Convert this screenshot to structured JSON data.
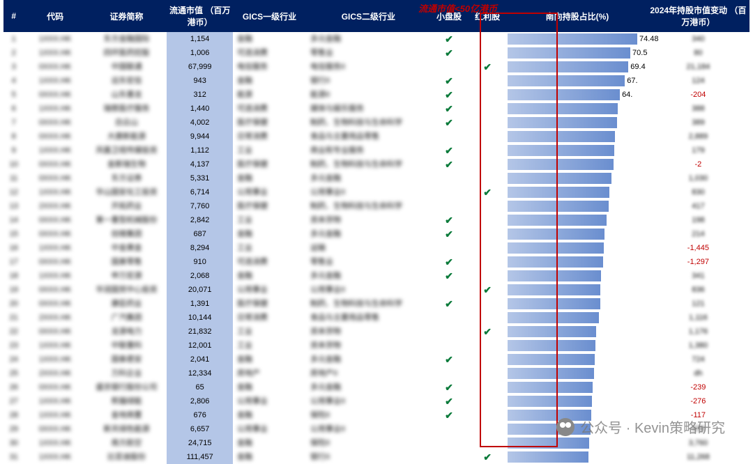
{
  "annotation": "流通市值<50亿港币",
  "headers": {
    "idx": "#",
    "code": "代码",
    "name": "证券简称",
    "cap": "流通市值\n（百万港币）",
    "g1": "GICS一级行业",
    "g2": "GICS二级行业",
    "small": "小盘股",
    "div": "红利股",
    "bar": "南向持股占比(%)",
    "chg": "2024年持股市值变动\n（百万港币）"
  },
  "bar_max": 80,
  "colors": {
    "header_bg": "#002060",
    "cap_bg": "#b4c6e7",
    "neg": "#c00000",
    "check": "#0a7a3a"
  },
  "rows": [
    {
      "idx": 1,
      "code": "1XXX.HK",
      "name": "东方金融国际",
      "cap": "1,154",
      "g1": "金融",
      "g2": "多元金融",
      "small": true,
      "div": false,
      "pct": 74.48,
      "pct_label": "74.48",
      "chg": "340",
      "neg": false
    },
    {
      "idx": 2,
      "code": "1XXX.HK",
      "name": "四环医药控股",
      "cap": "1,006",
      "g1": "可选消费",
      "g2": "零售业",
      "small": true,
      "div": false,
      "pct": 70.5,
      "pct_label": "70.5",
      "chg": "80",
      "neg": false
    },
    {
      "idx": 3,
      "code": "0XXX.HK",
      "name": "中国联通",
      "cap": "67,999",
      "g1": "电信服务",
      "g2": "电信服务II",
      "small": false,
      "div": true,
      "pct": 69.4,
      "pct_label": "69.4",
      "chg": "21,184",
      "neg": false
    },
    {
      "idx": 4,
      "code": "1XXX.HK",
      "name": "远东宏信",
      "cap": "943",
      "g1": "金融",
      "g2": "银行II",
      "small": true,
      "div": false,
      "pct": 67.4,
      "pct_label": "67.",
      "chg": "124",
      "neg": false
    },
    {
      "idx": 5,
      "code": "0XXX.HK",
      "name": "山东墨龙",
      "cap": "312",
      "g1": "能源",
      "g2": "能源II",
      "small": true,
      "div": false,
      "pct": 64.5,
      "pct_label": "64.",
      "chg": "-204",
      "neg": true
    },
    {
      "idx": 6,
      "code": "1XXX.HK",
      "name": "瑞慈医疗服务",
      "cap": "1,440",
      "g1": "可选消费",
      "g2": "媒体与娱乐服务",
      "small": true,
      "div": false,
      "pct": 63.4,
      "pct_label": "",
      "chg": "388",
      "neg": false
    },
    {
      "idx": 7,
      "code": "0XXX.HK",
      "name": "白云山",
      "cap": "4,002",
      "g1": "医疗保健",
      "g2": "制药、生物科技与生命科学",
      "small": true,
      "div": false,
      "pct": 62.9,
      "pct_label": "",
      "chg": "389",
      "neg": false
    },
    {
      "idx": 8,
      "code": "0XXX.HK",
      "name": "大唐新能源",
      "cap": "9,944",
      "g1": "日常消费",
      "g2": "食品与主要用品零售",
      "small": false,
      "div": false,
      "pct": 61.8,
      "pct_label": "",
      "chg": "2,889",
      "neg": false
    },
    {
      "idx": 9,
      "code": "1XXX.HK",
      "name": "凤凰卫视传媒投资",
      "cap": "1,112",
      "g1": "工业",
      "g2": "商业和专业服务",
      "small": true,
      "div": false,
      "pct": 61.3,
      "pct_label": "",
      "chg": "179",
      "neg": false
    },
    {
      "idx": 10,
      "code": "0XXX.HK",
      "name": "金斯瑞生物",
      "cap": "4,137",
      "g1": "医疗保健",
      "g2": "制药、生物科技与生命科学",
      "small": true,
      "div": false,
      "pct": 60.8,
      "pct_label": "",
      "chg": "-2",
      "neg": true
    },
    {
      "idx": 11,
      "code": "0XXX.HK",
      "name": "东方证券",
      "cap": "5,331",
      "g1": "金融",
      "g2": "多元金融",
      "small": false,
      "div": false,
      "pct": 59.7,
      "pct_label": "",
      "chg": "1,030",
      "neg": false
    },
    {
      "idx": 12,
      "code": "1XXX.HK",
      "name": "华山国安化工投资",
      "cap": "6,714",
      "g1": "公用事业",
      "g2": "公用事业II",
      "small": false,
      "div": true,
      "pct": 58.5,
      "pct_label": "",
      "chg": "830",
      "neg": false
    },
    {
      "idx": 13,
      "code": "2XXX.HK",
      "name": "开拓药业",
      "cap": "7,760",
      "g1": "医疗保健",
      "g2": "制药、生物科技与生命科学",
      "small": false,
      "div": false,
      "pct": 58.1,
      "pct_label": "",
      "chg": "417",
      "neg": false
    },
    {
      "idx": 14,
      "code": "0XXX.HK",
      "name": "第一重型机械股份",
      "cap": "2,842",
      "g1": "工业",
      "g2": "资本货物",
      "small": true,
      "div": false,
      "pct": 56.9,
      "pct_label": "",
      "chg": "198",
      "neg": false
    },
    {
      "idx": 15,
      "code": "0XXX.HK",
      "name": "创维集团",
      "cap": "687",
      "g1": "金融",
      "g2": "多元金融",
      "small": true,
      "div": false,
      "pct": 55.8,
      "pct_label": "",
      "chg": "214",
      "neg": false
    },
    {
      "idx": 16,
      "code": "1XXX.HK",
      "name": "中金黄金",
      "cap": "8,294",
      "g1": "工业",
      "g2": "运输",
      "small": false,
      "div": false,
      "pct": 55.2,
      "pct_label": "",
      "chg": "-1,445",
      "neg": true
    },
    {
      "idx": 17,
      "code": "0XXX.HK",
      "name": "国美零售",
      "cap": "910",
      "g1": "可选消费",
      "g2": "零售业",
      "small": true,
      "div": false,
      "pct": 55.0,
      "pct_label": "",
      "chg": "-1,297",
      "neg": true
    },
    {
      "idx": 18,
      "code": "1XXX.HK",
      "name": "申万宏源",
      "cap": "2,068",
      "g1": "金融",
      "g2": "多元金融",
      "small": true,
      "div": false,
      "pct": 53.8,
      "pct_label": "",
      "chg": "341",
      "neg": false
    },
    {
      "idx": 19,
      "code": "0XXX.HK",
      "name": "华润国贸中心投资",
      "cap": "20,071",
      "g1": "公用事业",
      "g2": "公用事业II",
      "small": false,
      "div": true,
      "pct": 53.4,
      "pct_label": "",
      "chg": "836",
      "neg": false
    },
    {
      "idx": 20,
      "code": "0XXX.HK",
      "name": "康臣药业",
      "cap": "1,391",
      "g1": "医疗保健",
      "g2": "制药、生物科技与生命科学",
      "small": true,
      "div": false,
      "pct": 53.1,
      "pct_label": "",
      "chg": "121",
      "neg": false
    },
    {
      "idx": 21,
      "code": "2XXX.HK",
      "name": "广汽集团",
      "cap": "10,144",
      "g1": "日常消费",
      "g2": "食品与主要用品零售",
      "small": false,
      "div": false,
      "pct": 52.6,
      "pct_label": "",
      "chg": "1,116",
      "neg": false
    },
    {
      "idx": 22,
      "code": "0XXX.HK",
      "name": "龙源电力",
      "cap": "21,832",
      "g1": "工业",
      "g2": "资本货物",
      "small": false,
      "div": true,
      "pct": 51.0,
      "pct_label": "",
      "chg": "1,176",
      "neg": false
    },
    {
      "idx": 23,
      "code": "1XXX.HK",
      "name": "中联重科",
      "cap": "12,001",
      "g1": "工业",
      "g2": "资本货物",
      "small": false,
      "div": false,
      "pct": 50.5,
      "pct_label": "",
      "chg": "1,380",
      "neg": false
    },
    {
      "idx": 24,
      "code": "1XXX.HK",
      "name": "国泰君安",
      "cap": "2,041",
      "g1": "金融",
      "g2": "多元金融",
      "small": true,
      "div": false,
      "pct": 50.0,
      "pct_label": "",
      "chg": "724",
      "neg": false
    },
    {
      "idx": 25,
      "code": "2XXX.HK",
      "name": "万科企业",
      "cap": "12,334",
      "g1": "房地产",
      "g2": "房地产II",
      "small": false,
      "div": false,
      "pct": 49.5,
      "pct_label": "",
      "chg": "dh",
      "neg": false
    },
    {
      "idx": 26,
      "code": "0XXX.HK",
      "name": "盛京银行股份公司",
      "cap": "65",
      "g1": "金融",
      "g2": "多元金融",
      "small": true,
      "div": false,
      "pct": 49.0,
      "pct_label": "",
      "chg": "-239",
      "neg": true
    },
    {
      "idx": 27,
      "code": "1XXX.HK",
      "name": "熊猫绿能",
      "cap": "2,806",
      "g1": "公用事业",
      "g2": "公用事业II",
      "small": true,
      "div": false,
      "pct": 48.5,
      "pct_label": "",
      "chg": "-276",
      "neg": true
    },
    {
      "idx": 28,
      "code": "1XXX.HK",
      "name": "金地商置",
      "cap": "676",
      "g1": "金融",
      "g2": "保险II",
      "small": true,
      "div": false,
      "pct": 48.0,
      "pct_label": "",
      "chg": "-117",
      "neg": true
    },
    {
      "idx": 29,
      "code": "0XXX.HK",
      "name": "新天绿色能源",
      "cap": "6,657",
      "g1": "公用事业",
      "g2": "公用事业II",
      "small": false,
      "div": false,
      "pct": 47.5,
      "pct_label": "",
      "chg": "378",
      "neg": false
    },
    {
      "idx": 30,
      "code": "1XXX.HK",
      "name": "南方航空",
      "cap": "24,715",
      "g1": "金融",
      "g2": "保险II",
      "small": false,
      "div": false,
      "pct": 47.0,
      "pct_label": "",
      "chg": "3,760",
      "neg": false
    },
    {
      "idx": 31,
      "code": "1XXX.HK",
      "name": "比亚迪股份",
      "cap": "111,457",
      "g1": "金融",
      "g2": "银行II",
      "small": false,
      "div": true,
      "pct": 46.5,
      "pct_label": "",
      "chg": "11,268",
      "neg": false
    }
  ],
  "watermark": "公众号 · Kevin策略研究"
}
